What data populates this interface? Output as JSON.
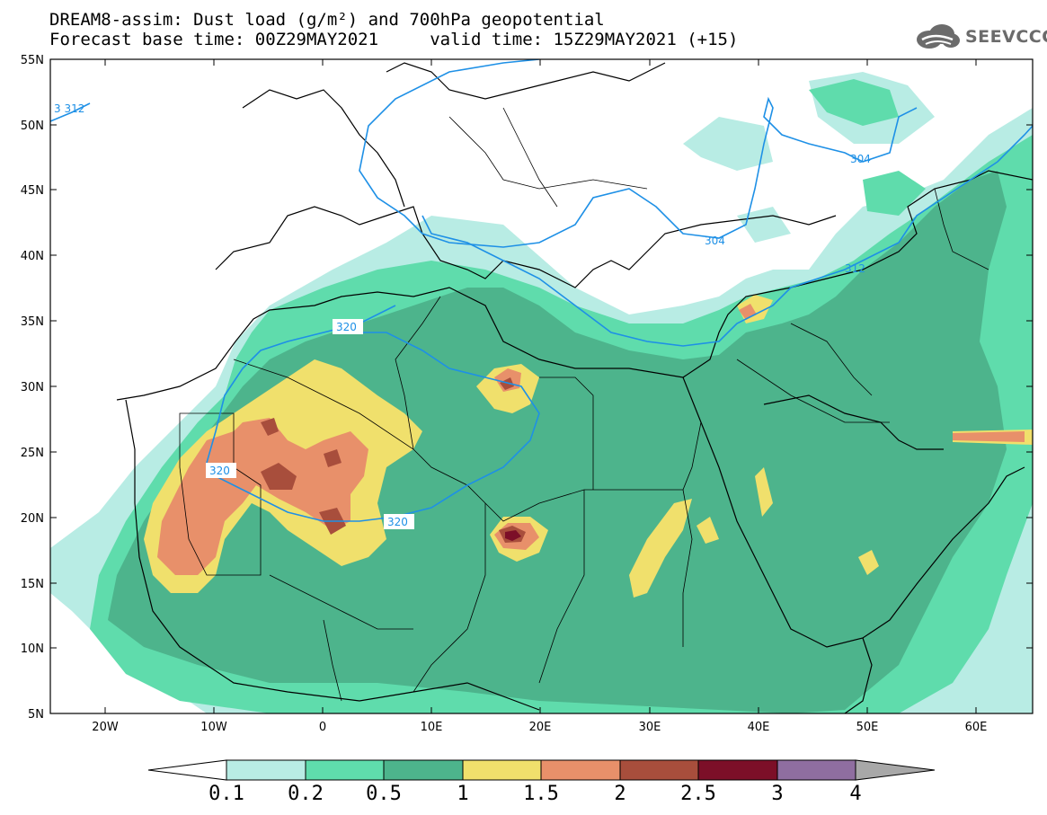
{
  "title": {
    "line1": "DREAM8-assim: Dust load (g/m²) and 700hPa geopotential",
    "line2": "Forecast base time: 00Z29MAY2021     valid time: 15Z29MAY2021 (+15)"
  },
  "logo": {
    "text": "SEEVCCC",
    "icon": "cloud-logo-icon"
  },
  "axes": {
    "lat_labels": [
      "55N",
      "50N",
      "45N",
      "40N",
      "35N",
      "30N",
      "25N",
      "20N",
      "15N",
      "10N",
      "5N"
    ],
    "lon_labels": [
      "20W",
      "10W",
      "0",
      "10E",
      "20E",
      "30E",
      "40E",
      "50E",
      "60E"
    ]
  },
  "contours": {
    "labels": [
      {
        "text": "3 312",
        "style": "plain"
      },
      {
        "text": "304",
        "style": "plain"
      },
      {
        "text": "304",
        "style": "plain"
      },
      {
        "text": "312",
        "style": "plain"
      },
      {
        "text": "320",
        "style": "plain"
      },
      {
        "text": "320",
        "style": "plain"
      },
      {
        "text": "320",
        "style": "plain"
      }
    ],
    "color": "#1e90e6"
  },
  "colorbar": {
    "labels": [
      "0.1",
      "0.2",
      "0.5",
      "1",
      "1.5",
      "2",
      "2.5",
      "3",
      "4"
    ],
    "colors": [
      "#b8ece4",
      "#5fdcac",
      "#4db48c",
      "#f0e06c",
      "#e8906a",
      "#a84e3c",
      "#7c0f28",
      "#8f6ea0"
    ],
    "under_color": "#ffffff",
    "over_color": "#a8a8a8"
  },
  "legend_colors": {
    "level_01": "#b8ece4",
    "level_02": "#5fdcac",
    "level_05": "#4db48c",
    "level_1": "#f0e06c",
    "level_15": "#e8906a",
    "level_2": "#a84e3c",
    "level_25": "#7c0f28"
  }
}
